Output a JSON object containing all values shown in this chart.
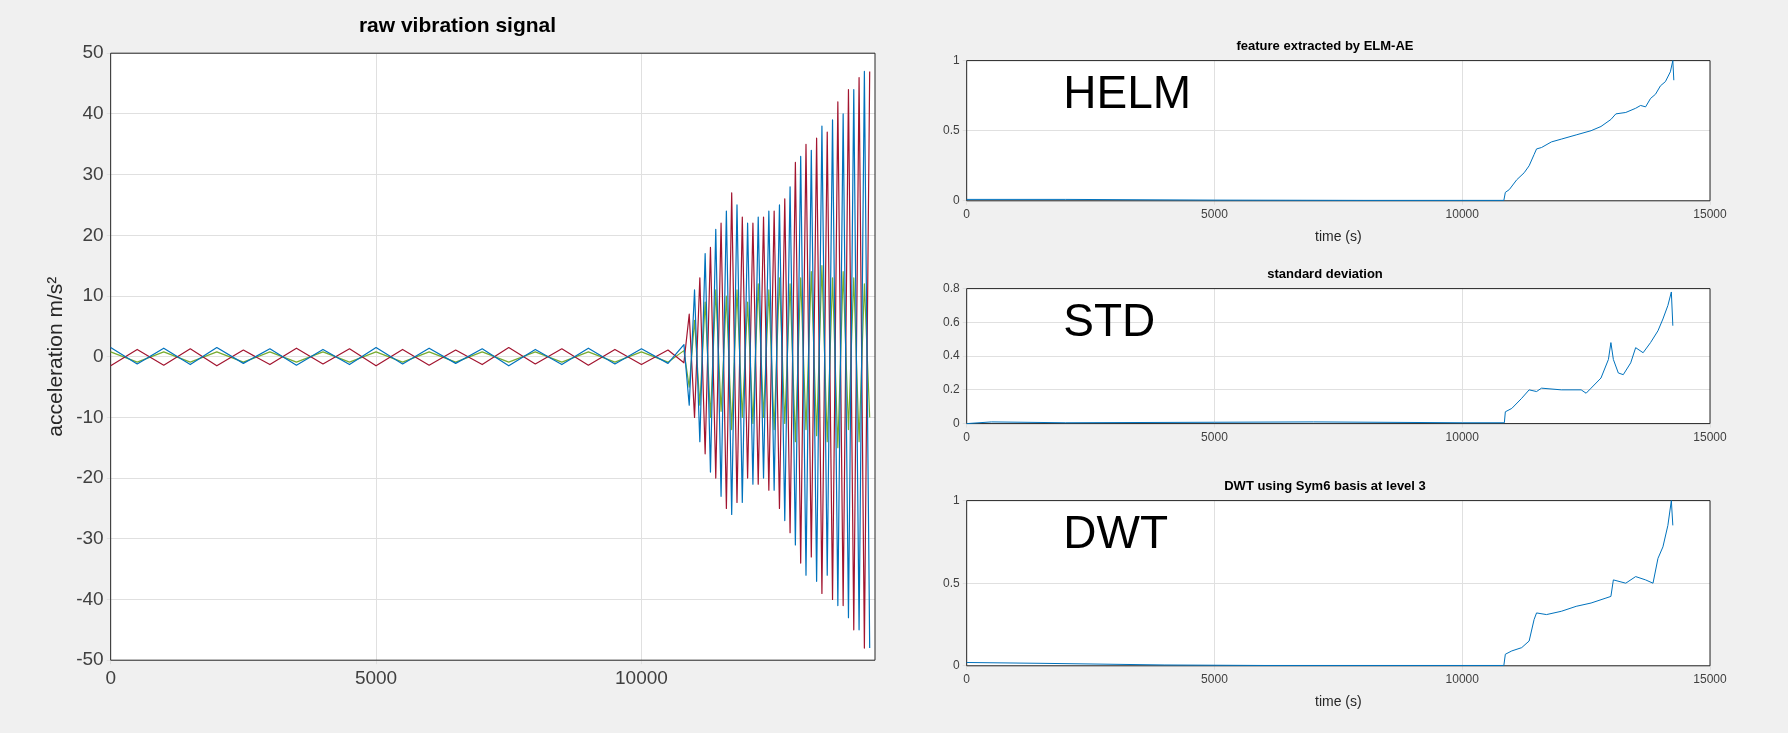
{
  "chart_data": [
    {
      "type": "line",
      "title": "raw vibration signal",
      "ylabel": "acceleration m/s²",
      "xlim": [
        0,
        14400
      ],
      "xticks": [
        0,
        5000,
        10000
      ],
      "ylim": [
        -50,
        50
      ],
      "yticks": [
        -50,
        -40,
        -30,
        -20,
        -10,
        0,
        10,
        20,
        30,
        40,
        50
      ],
      "grid": true,
      "marker": "none",
      "x": [
        0,
        500,
        1000,
        1500,
        2000,
        2500,
        3000,
        3500,
        4000,
        4500,
        5000,
        5500,
        6000,
        6500,
        7000,
        7500,
        8000,
        8500,
        9000,
        9500,
        10000,
        10500,
        10800,
        10900,
        11000,
        11100,
        11200,
        11300,
        11400,
        11500,
        11600,
        11700,
        11800,
        11900,
        12000,
        12100,
        12200,
        12300,
        12400,
        12500,
        12600,
        12700,
        12800,
        12900,
        13000,
        13100,
        13200,
        13300,
        13400,
        13500,
        13600,
        13700,
        13800,
        13900,
        14000,
        14100,
        14200,
        14300
      ],
      "series": [
        {
          "color": "#0072bd",
          "values": [
            1.5,
            -1.2,
            1.4,
            -1.3,
            1.5,
            -1.1,
            1.3,
            -1.4,
            1.2,
            -1.3,
            1.5,
            -1.2,
            1.4,
            -1.1,
            1.3,
            -1.5,
            1.2,
            -1.3,
            1.4,
            -1.2,
            1.3,
            -1.1,
            2,
            -8,
            11,
            -14,
            17,
            -19,
            21,
            -23,
            24,
            -26,
            25,
            -24,
            22,
            -21,
            23,
            -20,
            24,
            -22,
            25,
            -27,
            28,
            -31,
            33,
            -36,
            34,
            -37,
            38,
            -36,
            39,
            -41,
            40,
            -43,
            44,
            -45,
            47,
            -48
          ]
        },
        {
          "color": "#a2142f",
          "values": [
            -1.5,
            1.2,
            -1.4,
            1.3,
            -1.5,
            1.1,
            -1.3,
            1.4,
            -1.2,
            1.3,
            -1.5,
            1.2,
            -1.4,
            1.1,
            -1.3,
            1.5,
            -1.2,
            1.3,
            -1.4,
            1.2,
            -1.3,
            1.1,
            -1,
            7,
            -10,
            13,
            -16,
            18,
            -20,
            22,
            -25,
            27,
            -24,
            23,
            -20,
            22,
            -21,
            23,
            -22,
            24,
            -25,
            26,
            -29,
            32,
            -34,
            35,
            -33,
            36,
            -39,
            37,
            -40,
            42,
            -41,
            44,
            -45,
            46,
            -48,
            47
          ]
        },
        {
          "color": "#77ac30",
          "values": [
            0.8,
            -0.9,
            0.8,
            -0.9,
            0.8,
            -0.9,
            0.8,
            -0.9,
            0.8,
            -0.9,
            0.8,
            -0.9,
            0.8,
            -0.9,
            0.8,
            -0.9,
            0.8,
            -0.9,
            0.8,
            -0.9,
            0.8,
            -0.9,
            1,
            -5,
            6,
            -8,
            9,
            -10,
            11,
            -9,
            10,
            -12,
            11,
            -10,
            9,
            -11,
            12,
            -10,
            11,
            -12,
            13,
            -11,
            12,
            -14,
            13,
            -12,
            14,
            -13,
            15,
            -14,
            13,
            -15,
            14,
            -12,
            13,
            -14,
            12,
            -10
          ]
        }
      ]
    },
    {
      "type": "line",
      "title": "feature extracted by ELM-AE",
      "xlabel": "time (s)",
      "xlim": [
        0,
        15000
      ],
      "xticks": [
        0,
        5000,
        10000,
        15000
      ],
      "ylim": [
        0,
        1
      ],
      "yticks": [
        0,
        0.5,
        1
      ],
      "grid": true,
      "marker": "none",
      "annotations": [
        "HELM"
      ],
      "x": [
        0,
        2000,
        5000,
        8000,
        10840,
        10870,
        10950,
        11100,
        11250,
        11350,
        11450,
        11500,
        11600,
        11800,
        12000,
        12300,
        12600,
        12800,
        13000,
        13100,
        13300,
        13500,
        13600,
        13700,
        13800,
        13900,
        14000,
        14100,
        14200,
        14250,
        14270
      ],
      "series": [
        {
          "color": "#0072bd",
          "values": [
            0.01,
            0.01,
            0.005,
            0.003,
            0.003,
            0.06,
            0.08,
            0.15,
            0.2,
            0.25,
            0.33,
            0.37,
            0.38,
            0.42,
            0.44,
            0.47,
            0.5,
            0.53,
            0.58,
            0.62,
            0.63,
            0.66,
            0.68,
            0.67,
            0.73,
            0.76,
            0.82,
            0.85,
            0.92,
            1,
            0.86
          ]
        }
      ]
    },
    {
      "type": "line",
      "title": "standard deviation",
      "xlim": [
        0,
        15000
      ],
      "xticks": [
        0,
        5000,
        10000,
        15000
      ],
      "ylim": [
        0,
        0.8
      ],
      "yticks": [
        0,
        0.2,
        0.4,
        0.6,
        0.8
      ],
      "grid": true,
      "marker": "none",
      "annotations": [
        "STD"
      ],
      "x": [
        0,
        500,
        2000,
        5000,
        7000,
        10000,
        10850,
        10870,
        11000,
        11200,
        11350,
        11500,
        11600,
        12000,
        12400,
        12500,
        12600,
        12800,
        12950,
        13000,
        13050,
        13150,
        13250,
        13400,
        13500,
        13650,
        13800,
        13950,
        14050,
        14150,
        14220,
        14250
      ],
      "series": [
        {
          "color": "#0072bd",
          "values": [
            0,
            0.01,
            0.005,
            0.008,
            0.01,
            0.005,
            0.005,
            0.07,
            0.09,
            0.15,
            0.2,
            0.19,
            0.21,
            0.2,
            0.2,
            0.18,
            0.21,
            0.27,
            0.38,
            0.48,
            0.38,
            0.3,
            0.29,
            0.36,
            0.45,
            0.42,
            0.48,
            0.55,
            0.62,
            0.7,
            0.78,
            0.58
          ]
        }
      ]
    },
    {
      "type": "line",
      "title": "DWT using Sym6 basis at level 3",
      "xlabel": "time (s)",
      "xlim": [
        0,
        15000
      ],
      "xticks": [
        0,
        5000,
        10000,
        15000
      ],
      "ylim": [
        0,
        1
      ],
      "yticks": [
        0,
        0.5,
        1
      ],
      "grid": true,
      "marker": "none",
      "annotations": [
        "DWT"
      ],
      "x": [
        0,
        1500,
        4000,
        6000,
        10840,
        10870,
        11000,
        11200,
        11350,
        11450,
        11500,
        11700,
        12000,
        12300,
        12600,
        12900,
        13000,
        13050,
        13300,
        13500,
        13700,
        13850,
        13950,
        14050,
        14150,
        14220,
        14250
      ],
      "series": [
        {
          "color": "#0072bd",
          "values": [
            0.02,
            0.015,
            0.005,
            0.002,
            0.002,
            0.07,
            0.09,
            0.11,
            0.15,
            0.28,
            0.32,
            0.31,
            0.33,
            0.36,
            0.38,
            0.41,
            0.42,
            0.52,
            0.5,
            0.54,
            0.52,
            0.5,
            0.65,
            0.72,
            0.85,
            1,
            0.85
          ]
        }
      ]
    }
  ]
}
